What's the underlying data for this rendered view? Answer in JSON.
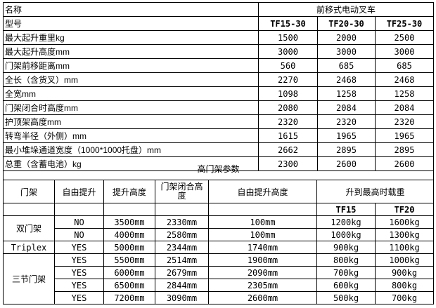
{
  "spec_table": {
    "name_label": "名称",
    "product_type": "前移式电动叉车",
    "model_label": "型号",
    "models": [
      "TF15-30",
      "TF20-30",
      "TF25-30"
    ],
    "rows": [
      {
        "label": "最大起升重里kg",
        "values": [
          "1500",
          "2000",
          "2500"
        ]
      },
      {
        "label": "最大起升高度mm",
        "values": [
          "3000",
          "3000",
          "3000"
        ]
      },
      {
        "label": "门架前移距离mm",
        "values": [
          "560",
          "685",
          "685"
        ]
      },
      {
        "label": "全长（含货叉）mm",
        "values": [
          "2270",
          "2468",
          "2468"
        ]
      },
      {
        "label": "全宽mm",
        "values": [
          "1098",
          "1258",
          "1258"
        ]
      },
      {
        "label": "门架闭合时高度mm",
        "values": [
          "2080",
          "2084",
          "2084"
        ]
      },
      {
        "label": "护顶架高度mm",
        "values": [
          "2320",
          "2320",
          "2320"
        ]
      },
      {
        "label": "转弯半径（外侧）mm",
        "values": [
          "1615",
          "1965",
          "1965"
        ]
      },
      {
        "label": "最小堆垛通道宽度（1000*1000托盘）mm",
        "values": [
          "2662",
          "2895",
          "2895"
        ]
      },
      {
        "label": "总重（含蓄电池）kg",
        "values": [
          "2300",
          "2600",
          "2600"
        ]
      }
    ]
  },
  "mast_table": {
    "title": "高门架参数",
    "headers": [
      "门架",
      "自由提升",
      "提升高度",
      "门架闭合高度",
      "自由提升高度",
      "升到最高时载重"
    ],
    "sub_headers": [
      "TF15",
      "TF20"
    ],
    "groups": [
      "双门架",
      "Triplex",
      "三节门架"
    ],
    "rows": [
      [
        "NO",
        "3500mm",
        "2330mm",
        "100mm",
        "1200kg",
        "1600kg"
      ],
      [
        "NO",
        "4000mm",
        "2580mm",
        "100mm",
        "1000kg",
        "1300kg"
      ],
      [
        "YES",
        "5000mm",
        "2344mm",
        "1740mm",
        "900kg",
        "1100kg"
      ],
      [
        "YES",
        "5500mm",
        "2514mm",
        "1900mm",
        "800kg",
        "1000kg"
      ],
      [
        "YES",
        "6000mm",
        "2679mm",
        "2090mm",
        "700kg",
        "900kg"
      ],
      [
        "YES",
        "6500mm",
        "2844mm",
        "2305mm",
        "600kg",
        "800kg"
      ],
      [
        "YES",
        "7200mm",
        "3090mm",
        "2600mm",
        "500kg",
        "700kg"
      ]
    ]
  }
}
